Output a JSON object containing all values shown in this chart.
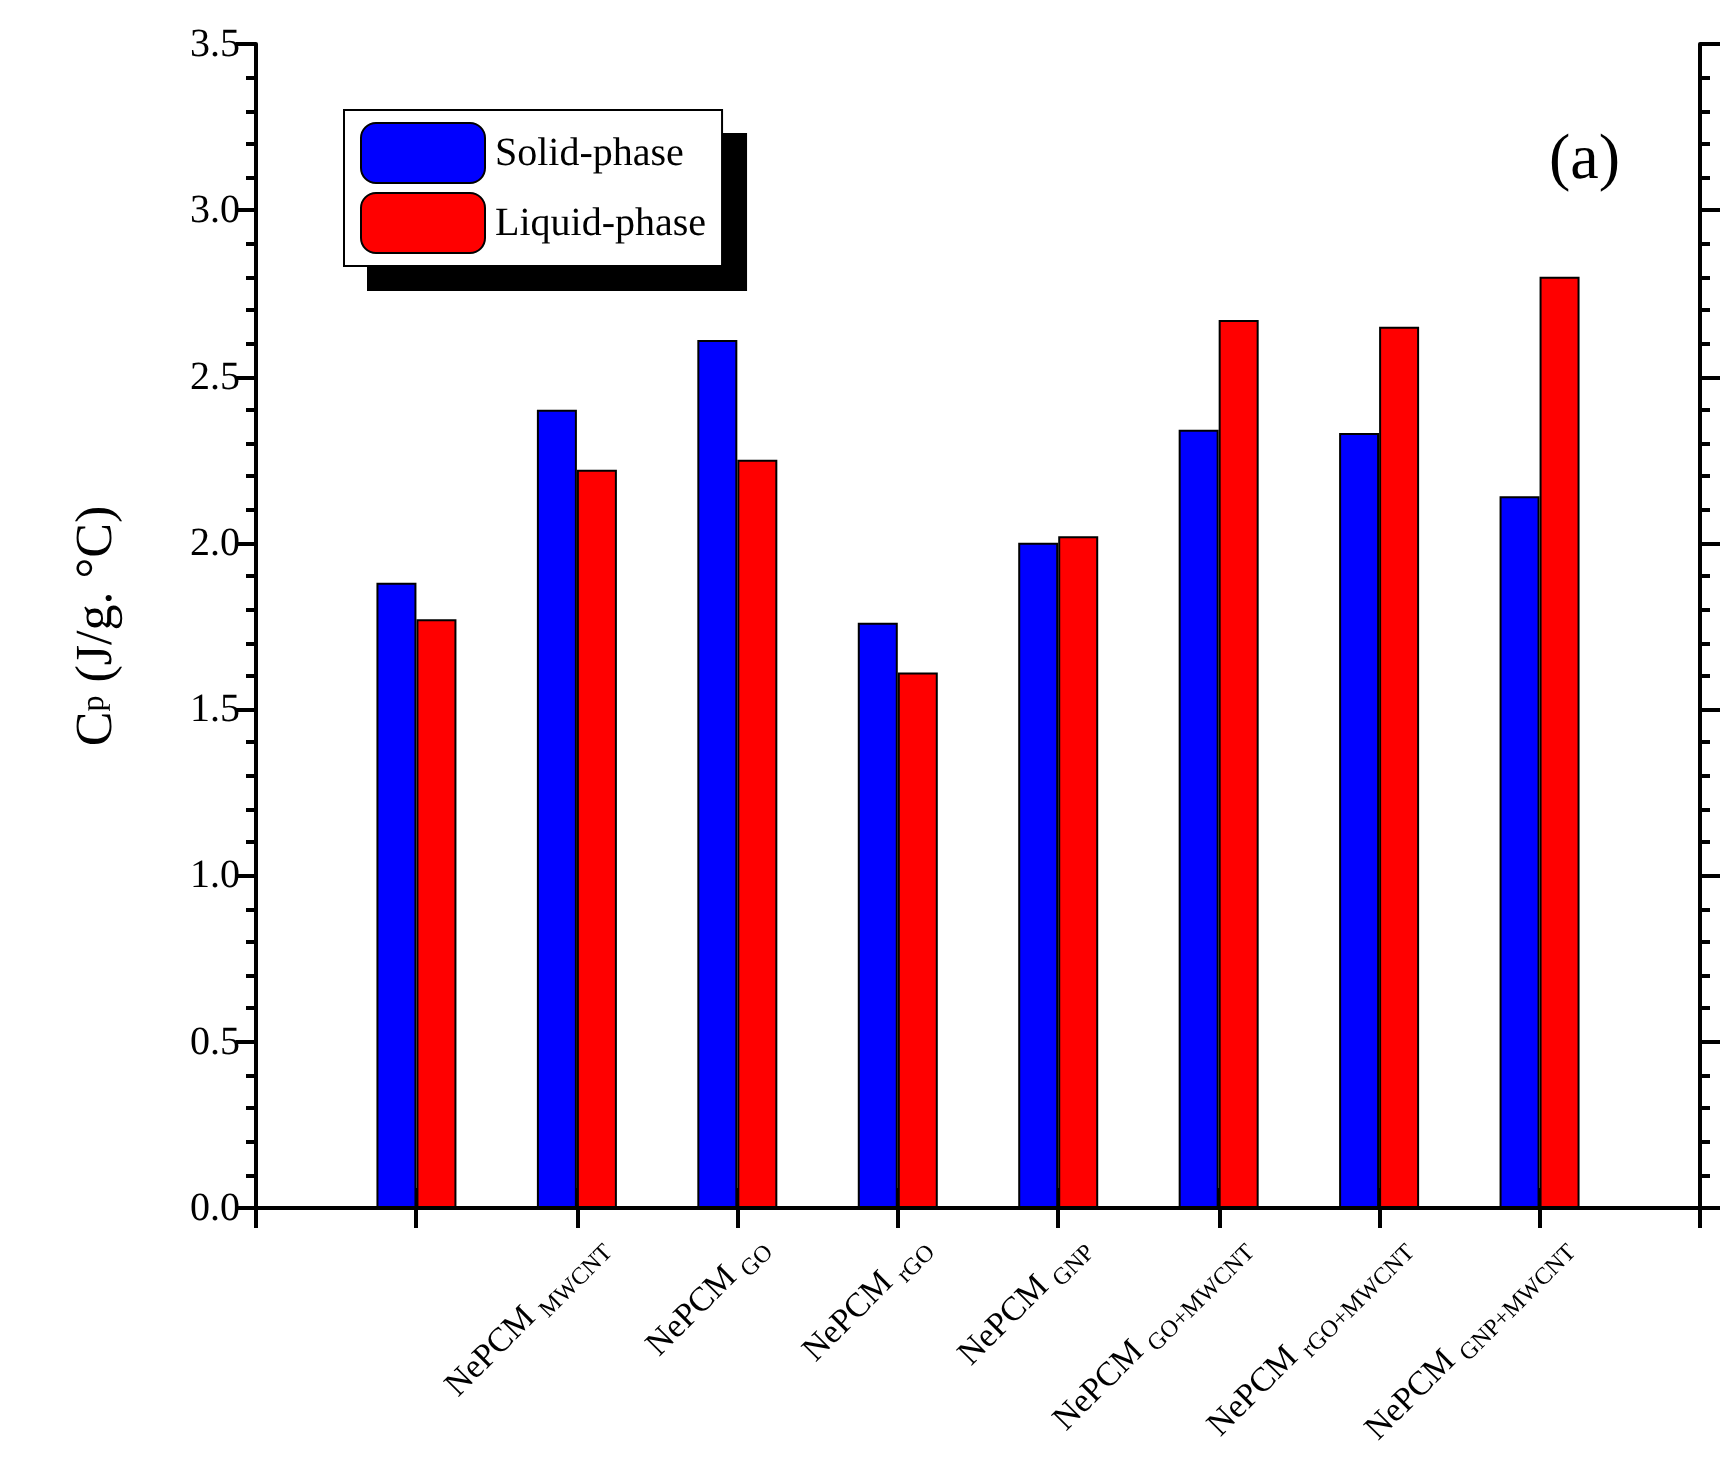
{
  "chart_data": {
    "type": "bar",
    "ylabel": "C$_{p}$ (J/g. °C)",
    "annotations": [
      "(a)"
    ],
    "categories": [
      null,
      "NePCM $_{MWCNT}$",
      "NePCM $_{GO}$",
      "NePCM $_{rGO}$",
      "NePCM $_{GNP}$",
      "NePCM $_{GO+MWCNT}$",
      "NePCM $_{rGO+MWCNT}$",
      "NePCM $_{GNP+MWCNT}$"
    ],
    "series": [
      {
        "name": "Solid-phase",
        "color": "#0000ff",
        "values": [
          1.88,
          2.4,
          2.61,
          1.76,
          2.0,
          2.34,
          2.33,
          2.14
        ]
      },
      {
        "name": "Liquid-phase",
        "color": "#ff0000",
        "values": [
          1.77,
          2.22,
          2.25,
          1.61,
          2.02,
          2.67,
          2.65,
          2.8
        ]
      }
    ],
    "ylim": [
      0,
      3.5
    ],
    "yticks": [
      {
        "value": 0,
        "label": "0.0"
      },
      0.5,
      {
        "value": 1,
        "label": "1.0"
      },
      1.5,
      {
        "value": 2,
        "label": "2.0"
      },
      2.5,
      {
        "value": 3,
        "label": "3.0"
      },
      3.5
    ],
    "grid": false,
    "legend": "top left"
  }
}
